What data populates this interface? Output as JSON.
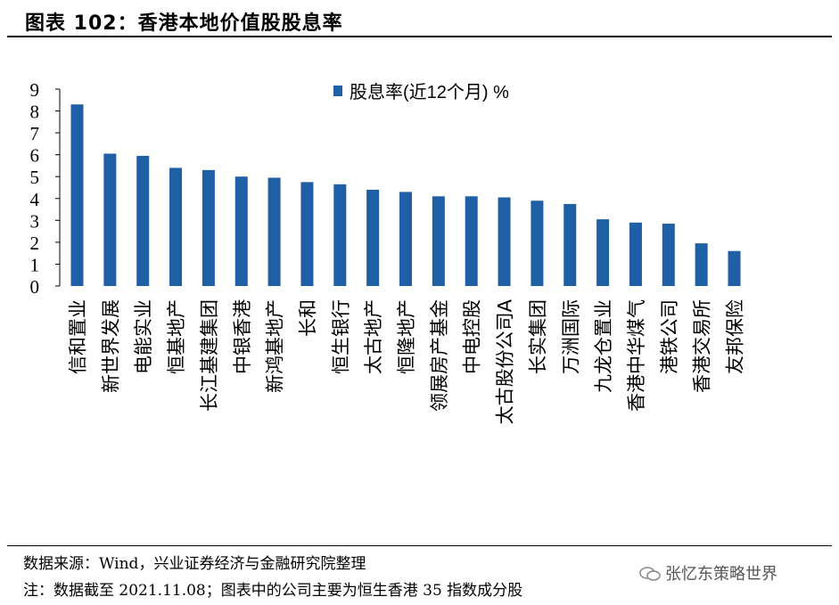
{
  "header": {
    "title": "图表 102：香港本地价值股股息率"
  },
  "chart_data": {
    "type": "bar",
    "title": "",
    "legend": "股息率(近12个月) %",
    "legend_position": "top-right",
    "categories": [
      "信和置业",
      "新世界发展",
      "电能实业",
      "恒基地产",
      "长江基建集团",
      "中银香港",
      "新鸿基地产",
      "长和",
      "恒生银行",
      "太古地产",
      "恒隆地产",
      "领展房产基金",
      "中电控股",
      "太古股份公司A",
      "长实集团",
      "万洲国际",
      "九龙仓置业",
      "香港中华煤气",
      "港铁公司",
      "香港交易所",
      "友邦保险"
    ],
    "values": [
      8.3,
      6.05,
      5.95,
      5.4,
      5.3,
      5.0,
      4.95,
      4.75,
      4.65,
      4.4,
      4.3,
      4.1,
      4.1,
      4.05,
      3.9,
      3.75,
      3.05,
      2.9,
      2.85,
      1.95,
      1.6
    ],
    "yticks": [
      "0",
      "1",
      "2",
      "3",
      "4",
      "5",
      "6",
      "7",
      "8",
      "9"
    ],
    "ylim": [
      0,
      9
    ],
    "grid": false,
    "color": "#1f5fa6"
  },
  "footer": {
    "source": "数据来源：Wind，兴业证券经济与金融研究院整理",
    "note": "注：数据截至 2021.11.08；图表中的公司主要为恒生香港 35 指数成分股",
    "watermark": "张忆东策略世界"
  }
}
